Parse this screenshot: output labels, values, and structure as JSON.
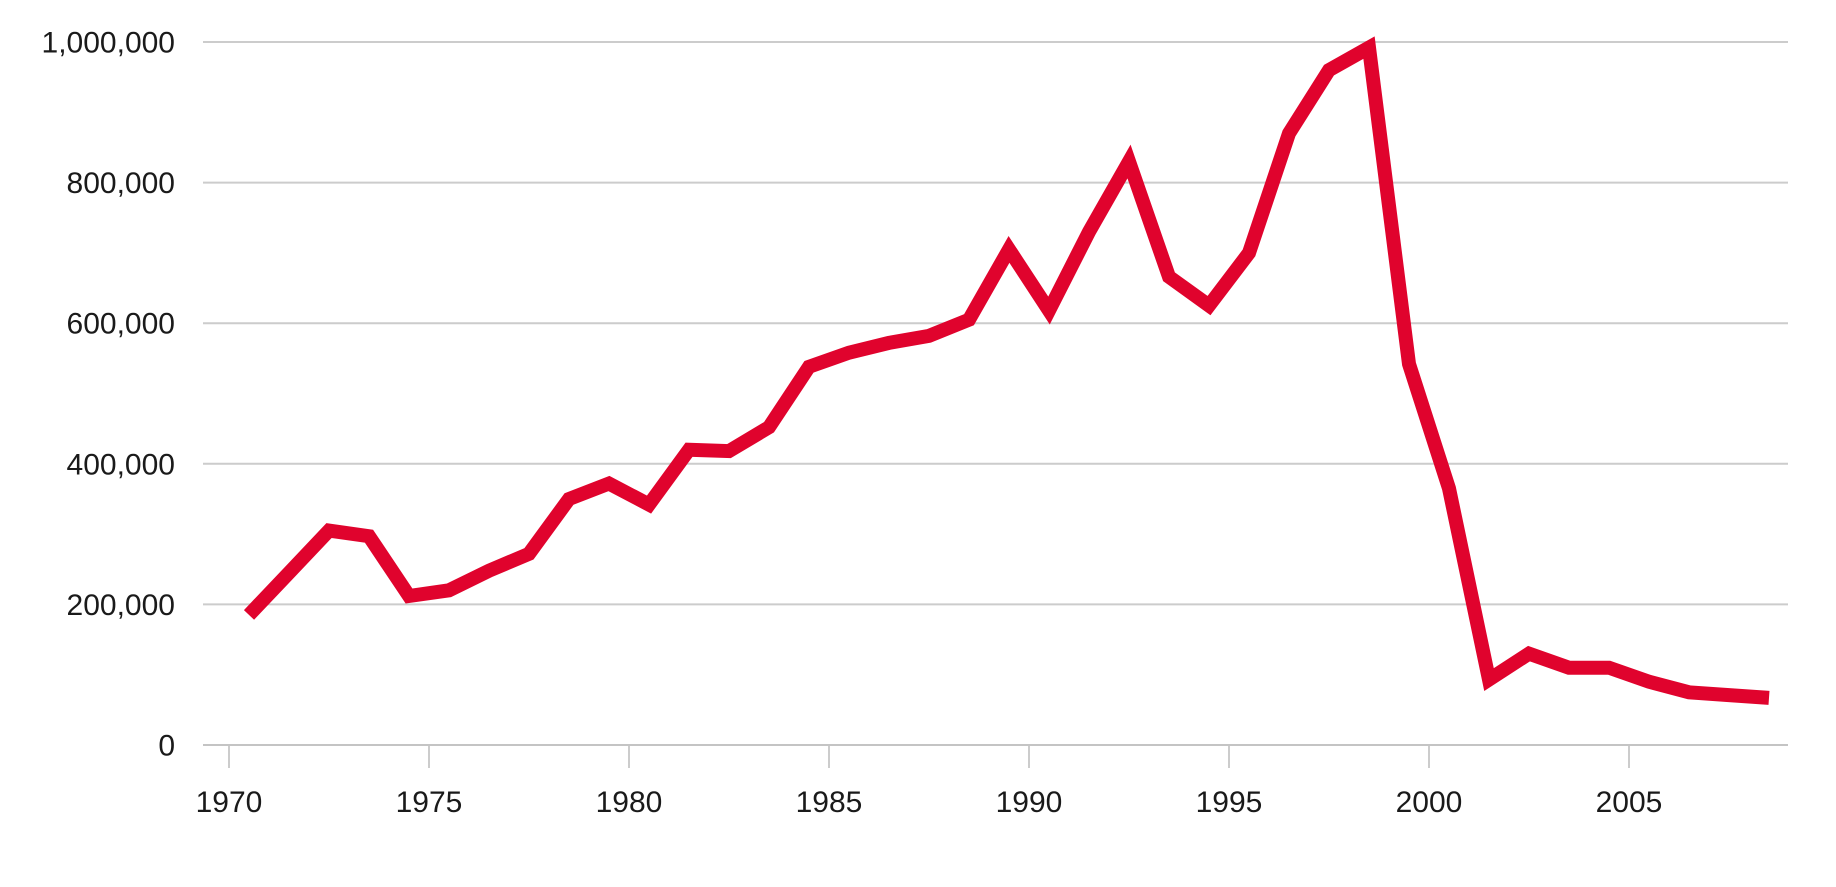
{
  "chart_data": {
    "type": "line",
    "title": "",
    "xlabel": "",
    "ylabel": "",
    "grid": "horizontal",
    "legend": "none",
    "background_color": "#ffffff",
    "line_color": "#e0032d",
    "gridline_color": "#cccccc",
    "axis_line_color": "#c4c4c4",
    "tick_color": "#cccccc",
    "label_color": "#1a1a1a",
    "ylim": [
      0,
      1000000
    ],
    "y_ticks": [
      {
        "value": 0,
        "label": "0"
      },
      {
        "value": 200000,
        "label": "200,000"
      },
      {
        "value": 400000,
        "label": "400,000"
      },
      {
        "value": 600000,
        "label": "600,000"
      },
      {
        "value": 800000,
        "label": "800,000"
      },
      {
        "value": 1000000,
        "label": "1,000,000"
      }
    ],
    "x_ticks": [
      {
        "year": 1970,
        "label": "1970"
      },
      {
        "year": 1975,
        "label": "1975"
      },
      {
        "year": 1980,
        "label": "1980"
      },
      {
        "year": 1985,
        "label": "1985"
      },
      {
        "year": 1990,
        "label": "1990"
      },
      {
        "year": 1995,
        "label": "1995"
      },
      {
        "year": 2000,
        "label": "2000"
      },
      {
        "year": 2005,
        "label": "2005"
      }
    ],
    "x": [
      1970,
      1971,
      1972,
      1973,
      1974,
      1975,
      1976,
      1977,
      1978,
      1979,
      1980,
      1981,
      1982,
      1983,
      1984,
      1985,
      1986,
      1987,
      1988,
      1989,
      1990,
      1991,
      1992,
      1993,
      1994,
      1995,
      1996,
      1997,
      1998,
      1999,
      2000,
      2001,
      2002,
      2003,
      2004,
      2005,
      2006,
      2007,
      2008
    ],
    "series": [
      {
        "name": "value",
        "values": [
          185000,
          245000,
          305000,
          297000,
          212000,
          220000,
          248000,
          272000,
          350000,
          372000,
          342000,
          420000,
          418000,
          452000,
          538000,
          558000,
          572000,
          582000,
          605000,
          705000,
          618000,
          730000,
          830000,
          666000,
          625000,
          700000,
          870000,
          960000,
          992000,
          542000,
          365000,
          93000,
          130000,
          110000,
          110000,
          90000,
          75000,
          71000,
          67000
        ]
      }
    ]
  }
}
